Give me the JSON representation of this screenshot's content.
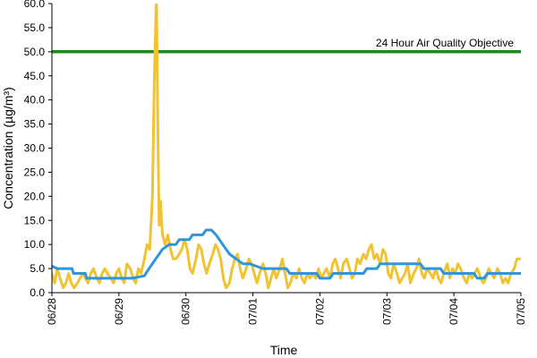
{
  "chart_data": {
    "type": "line",
    "xlabel": "Time",
    "ylabel": "Concentration (µg/m³)",
    "x_categories": [
      "06/28",
      "06/29",
      "06/30",
      "07/01",
      "07/02",
      "07/03",
      "07/04",
      "07/05"
    ],
    "ylim": [
      0,
      60
    ],
    "yticks": [
      "0.0",
      "5.0",
      "10.0",
      "15.0",
      "20.0",
      "25.0",
      "30.0",
      "35.0",
      "40.0",
      "45.0",
      "50.0",
      "55.0",
      "60.0"
    ],
    "grid": false,
    "annotations": [
      {
        "text": "24 Hour Air Quality Objective",
        "value": 50
      }
    ],
    "series": [
      {
        "color": "#1f8a1f",
        "kind": "objective",
        "points": [
          [
            0,
            50
          ],
          [
            7,
            50
          ]
        ]
      },
      {
        "color": "#2f95dc",
        "kind": "24h-average",
        "points": [
          [
            0,
            5.5
          ],
          [
            0.08,
            5
          ],
          [
            0.3,
            5
          ],
          [
            0.32,
            4
          ],
          [
            0.5,
            4
          ],
          [
            0.52,
            3
          ],
          [
            0.9,
            3
          ],
          [
            1.2,
            3
          ],
          [
            1.38,
            3.5
          ],
          [
            1.45,
            5
          ],
          [
            1.55,
            7
          ],
          [
            1.65,
            9
          ],
          [
            1.75,
            10
          ],
          [
            1.85,
            10
          ],
          [
            1.9,
            11
          ],
          [
            2.05,
            11
          ],
          [
            2.1,
            12
          ],
          [
            2.25,
            12
          ],
          [
            2.3,
            13
          ],
          [
            2.38,
            13
          ],
          [
            2.45,
            12
          ],
          [
            2.55,
            10
          ],
          [
            2.65,
            8
          ],
          [
            2.75,
            7
          ],
          [
            2.85,
            6
          ],
          [
            2.95,
            6
          ],
          [
            3.05,
            5.5
          ],
          [
            3.15,
            5
          ],
          [
            3.5,
            5
          ],
          [
            3.55,
            4
          ],
          [
            3.95,
            4
          ],
          [
            4.0,
            3
          ],
          [
            4.15,
            3
          ],
          [
            4.2,
            4
          ],
          [
            4.65,
            4
          ],
          [
            4.7,
            5
          ],
          [
            4.85,
            5
          ],
          [
            4.9,
            6
          ],
          [
            5.5,
            6
          ],
          [
            5.55,
            5
          ],
          [
            5.8,
            5
          ],
          [
            5.85,
            4
          ],
          [
            6.3,
            4
          ],
          [
            6.35,
            3
          ],
          [
            6.45,
            3
          ],
          [
            6.5,
            4
          ],
          [
            7.0,
            4
          ]
        ]
      },
      {
        "color": "#f1c232",
        "kind": "hourly",
        "points": [
          [
            0,
            4
          ],
          [
            0.04,
            2
          ],
          [
            0.08,
            5
          ],
          [
            0.12,
            3
          ],
          [
            0.17,
            1
          ],
          [
            0.21,
            2
          ],
          [
            0.25,
            4
          ],
          [
            0.29,
            2
          ],
          [
            0.33,
            1
          ],
          [
            0.38,
            2
          ],
          [
            0.42,
            3
          ],
          [
            0.46,
            4
          ],
          [
            0.5,
            3
          ],
          [
            0.54,
            2
          ],
          [
            0.58,
            4
          ],
          [
            0.62,
            5
          ],
          [
            0.67,
            3
          ],
          [
            0.71,
            2
          ],
          [
            0.75,
            4
          ],
          [
            0.79,
            5
          ],
          [
            0.83,
            4
          ],
          [
            0.88,
            3
          ],
          [
            0.92,
            2
          ],
          [
            0.96,
            4
          ],
          [
            1.0,
            5
          ],
          [
            1.04,
            3
          ],
          [
            1.08,
            2
          ],
          [
            1.12,
            6
          ],
          [
            1.17,
            5
          ],
          [
            1.21,
            3
          ],
          [
            1.25,
            2
          ],
          [
            1.29,
            5
          ],
          [
            1.33,
            4
          ],
          [
            1.38,
            7
          ],
          [
            1.42,
            10
          ],
          [
            1.46,
            9
          ],
          [
            1.5,
            20
          ],
          [
            1.53,
            45
          ],
          [
            1.56,
            62
          ],
          [
            1.58,
            35
          ],
          [
            1.6,
            14
          ],
          [
            1.62,
            19
          ],
          [
            1.65,
            12
          ],
          [
            1.69,
            10
          ],
          [
            1.73,
            12
          ],
          [
            1.77,
            9
          ],
          [
            1.81,
            7
          ],
          [
            1.85,
            7
          ],
          [
            1.9,
            8
          ],
          [
            1.94,
            9
          ],
          [
            1.98,
            11
          ],
          [
            2.02,
            9
          ],
          [
            2.06,
            5
          ],
          [
            2.1,
            4
          ],
          [
            2.15,
            7
          ],
          [
            2.19,
            10
          ],
          [
            2.23,
            9
          ],
          [
            2.27,
            6
          ],
          [
            2.31,
            4
          ],
          [
            2.35,
            6
          ],
          [
            2.4,
            8
          ],
          [
            2.44,
            10
          ],
          [
            2.48,
            9
          ],
          [
            2.52,
            7
          ],
          [
            2.56,
            3
          ],
          [
            2.6,
            1
          ],
          [
            2.65,
            2
          ],
          [
            2.69,
            5
          ],
          [
            2.73,
            7
          ],
          [
            2.77,
            8
          ],
          [
            2.81,
            5
          ],
          [
            2.85,
            3
          ],
          [
            2.9,
            5
          ],
          [
            2.94,
            7
          ],
          [
            2.98,
            6
          ],
          [
            3.02,
            4
          ],
          [
            3.06,
            2
          ],
          [
            3.1,
            4
          ],
          [
            3.15,
            6
          ],
          [
            3.19,
            4
          ],
          [
            3.23,
            1
          ],
          [
            3.27,
            3
          ],
          [
            3.31,
            5
          ],
          [
            3.35,
            3
          ],
          [
            3.4,
            5
          ],
          [
            3.44,
            7
          ],
          [
            3.48,
            4
          ],
          [
            3.52,
            1
          ],
          [
            3.56,
            2
          ],
          [
            3.6,
            4
          ],
          [
            3.65,
            3
          ],
          [
            3.69,
            5
          ],
          [
            3.73,
            3
          ],
          [
            3.77,
            2
          ],
          [
            3.81,
            4
          ],
          [
            3.85,
            3
          ],
          [
            3.9,
            4
          ],
          [
            3.94,
            3
          ],
          [
            3.98,
            5
          ],
          [
            4.02,
            3
          ],
          [
            4.06,
            4
          ],
          [
            4.1,
            5
          ],
          [
            4.15,
            3
          ],
          [
            4.19,
            6
          ],
          [
            4.23,
            7
          ],
          [
            4.27,
            5
          ],
          [
            4.31,
            3
          ],
          [
            4.35,
            6
          ],
          [
            4.4,
            7
          ],
          [
            4.44,
            5
          ],
          [
            4.48,
            3
          ],
          [
            4.52,
            4
          ],
          [
            4.56,
            7
          ],
          [
            4.6,
            6
          ],
          [
            4.65,
            8
          ],
          [
            4.69,
            7
          ],
          [
            4.73,
            9
          ],
          [
            4.77,
            10
          ],
          [
            4.81,
            7
          ],
          [
            4.85,
            8
          ],
          [
            4.9,
            6
          ],
          [
            4.94,
            9
          ],
          [
            4.98,
            8
          ],
          [
            5.02,
            4
          ],
          [
            5.06,
            3
          ],
          [
            5.1,
            6
          ],
          [
            5.15,
            4
          ],
          [
            5.19,
            2
          ],
          [
            5.23,
            3
          ],
          [
            5.27,
            4
          ],
          [
            5.31,
            6
          ],
          [
            5.35,
            2
          ],
          [
            5.4,
            4
          ],
          [
            5.44,
            5
          ],
          [
            5.48,
            7
          ],
          [
            5.52,
            4
          ],
          [
            5.56,
            3
          ],
          [
            5.6,
            5
          ],
          [
            5.65,
            4
          ],
          [
            5.69,
            3
          ],
          [
            5.73,
            5
          ],
          [
            5.77,
            3
          ],
          [
            5.81,
            2
          ],
          [
            5.85,
            4
          ],
          [
            5.9,
            6
          ],
          [
            5.94,
            3
          ],
          [
            5.98,
            5
          ],
          [
            6.02,
            4
          ],
          [
            6.06,
            6
          ],
          [
            6.1,
            5
          ],
          [
            6.15,
            3
          ],
          [
            6.19,
            2
          ],
          [
            6.23,
            4
          ],
          [
            6.27,
            3
          ],
          [
            6.31,
            4
          ],
          [
            6.35,
            5
          ],
          [
            6.4,
            3
          ],
          [
            6.44,
            2
          ],
          [
            6.48,
            3
          ],
          [
            6.52,
            5
          ],
          [
            6.56,
            4
          ],
          [
            6.6,
            3
          ],
          [
            6.65,
            5
          ],
          [
            6.69,
            4
          ],
          [
            6.73,
            2
          ],
          [
            6.77,
            3
          ],
          [
            6.81,
            2
          ],
          [
            6.85,
            4
          ],
          [
            6.9,
            5
          ],
          [
            6.94,
            7
          ],
          [
            7.0,
            7
          ]
        ]
      }
    ]
  }
}
